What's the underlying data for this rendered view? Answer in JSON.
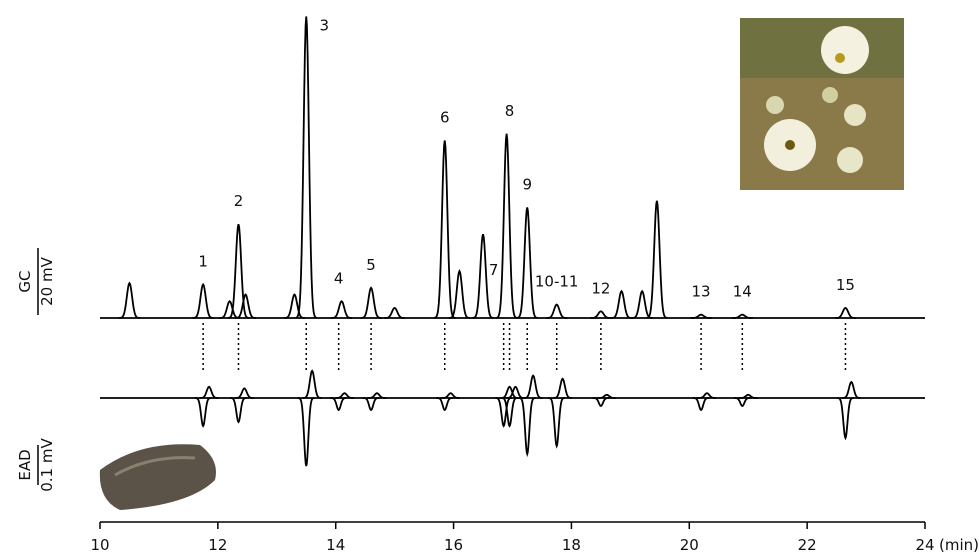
{
  "chart_data": {
    "type": "gc-ead",
    "trace_labels": [
      "GC",
      "EAD"
    ],
    "scale_bars": [
      {
        "value": 20,
        "label": "20 mV"
      },
      {
        "value": 0.1,
        "label": "0.1 mV"
      }
    ],
    "xlim": [
      10,
      24
    ],
    "xticks": [
      10,
      12,
      14,
      16,
      18,
      20,
      22,
      24
    ],
    "xlabel": "(min)",
    "color": "#000000",
    "gc_peaks": [
      {
        "rt": 10.5,
        "height": 10.4
      },
      {
        "rt": 11.75,
        "height": 10
      },
      {
        "rt": 12.2,
        "height": 5
      },
      {
        "rt": 12.35,
        "height": 28
      },
      {
        "rt": 12.47,
        "height": 7
      },
      {
        "rt": 13.3,
        "height": 7
      },
      {
        "rt": 13.5,
        "height": 90
      },
      {
        "rt": 14.1,
        "height": 5
      },
      {
        "rt": 14.6,
        "height": 9
      },
      {
        "rt": 15.0,
        "height": 3
      },
      {
        "rt": 15.85,
        "height": 53
      },
      {
        "rt": 16.1,
        "height": 14
      },
      {
        "rt": 16.5,
        "height": 25
      },
      {
        "rt": 16.9,
        "height": 55
      },
      {
        "rt": 17.25,
        "height": 33
      },
      {
        "rt": 17.75,
        "height": 4
      },
      {
        "rt": 18.5,
        "height": 2
      },
      {
        "rt": 18.85,
        "height": 8
      },
      {
        "rt": 19.2,
        "height": 8
      },
      {
        "rt": 19.45,
        "height": 35
      },
      {
        "rt": 20.2,
        "height": 1
      },
      {
        "rt": 20.9,
        "height": 1
      },
      {
        "rt": 22.65,
        "height": 3
      }
    ],
    "active_compounds": [
      {
        "label": "1",
        "rt": 11.75,
        "ead": -0.07
      },
      {
        "label": "2",
        "rt": 12.35,
        "ead": -0.06
      },
      {
        "label": "3",
        "rt": 13.5,
        "ead": -0.17
      },
      {
        "label": "4",
        "rt": 14.05,
        "ead": -0.03
      },
      {
        "label": "5",
        "rt": 14.6,
        "ead": -0.03
      },
      {
        "label": "6",
        "rt": 15.85,
        "ead": -0.03
      },
      {
        "label": "7",
        "rt": 16.85,
        "ead": -0.07
      },
      {
        "label": "8",
        "rt": 16.95,
        "ead": -0.07
      },
      {
        "label": "9",
        "rt": 17.25,
        "ead": -0.14
      },
      {
        "label": "10-11",
        "rt": 17.75,
        "ead": -0.12
      },
      {
        "label": "12",
        "rt": 18.5,
        "ead": -0.02
      },
      {
        "label": "13",
        "rt": 20.2,
        "ead": -0.03
      },
      {
        "label": "14",
        "rt": 20.9,
        "ead": -0.02
      },
      {
        "label": "15",
        "rt": 22.65,
        "ead": -0.1
      }
    ]
  }
}
